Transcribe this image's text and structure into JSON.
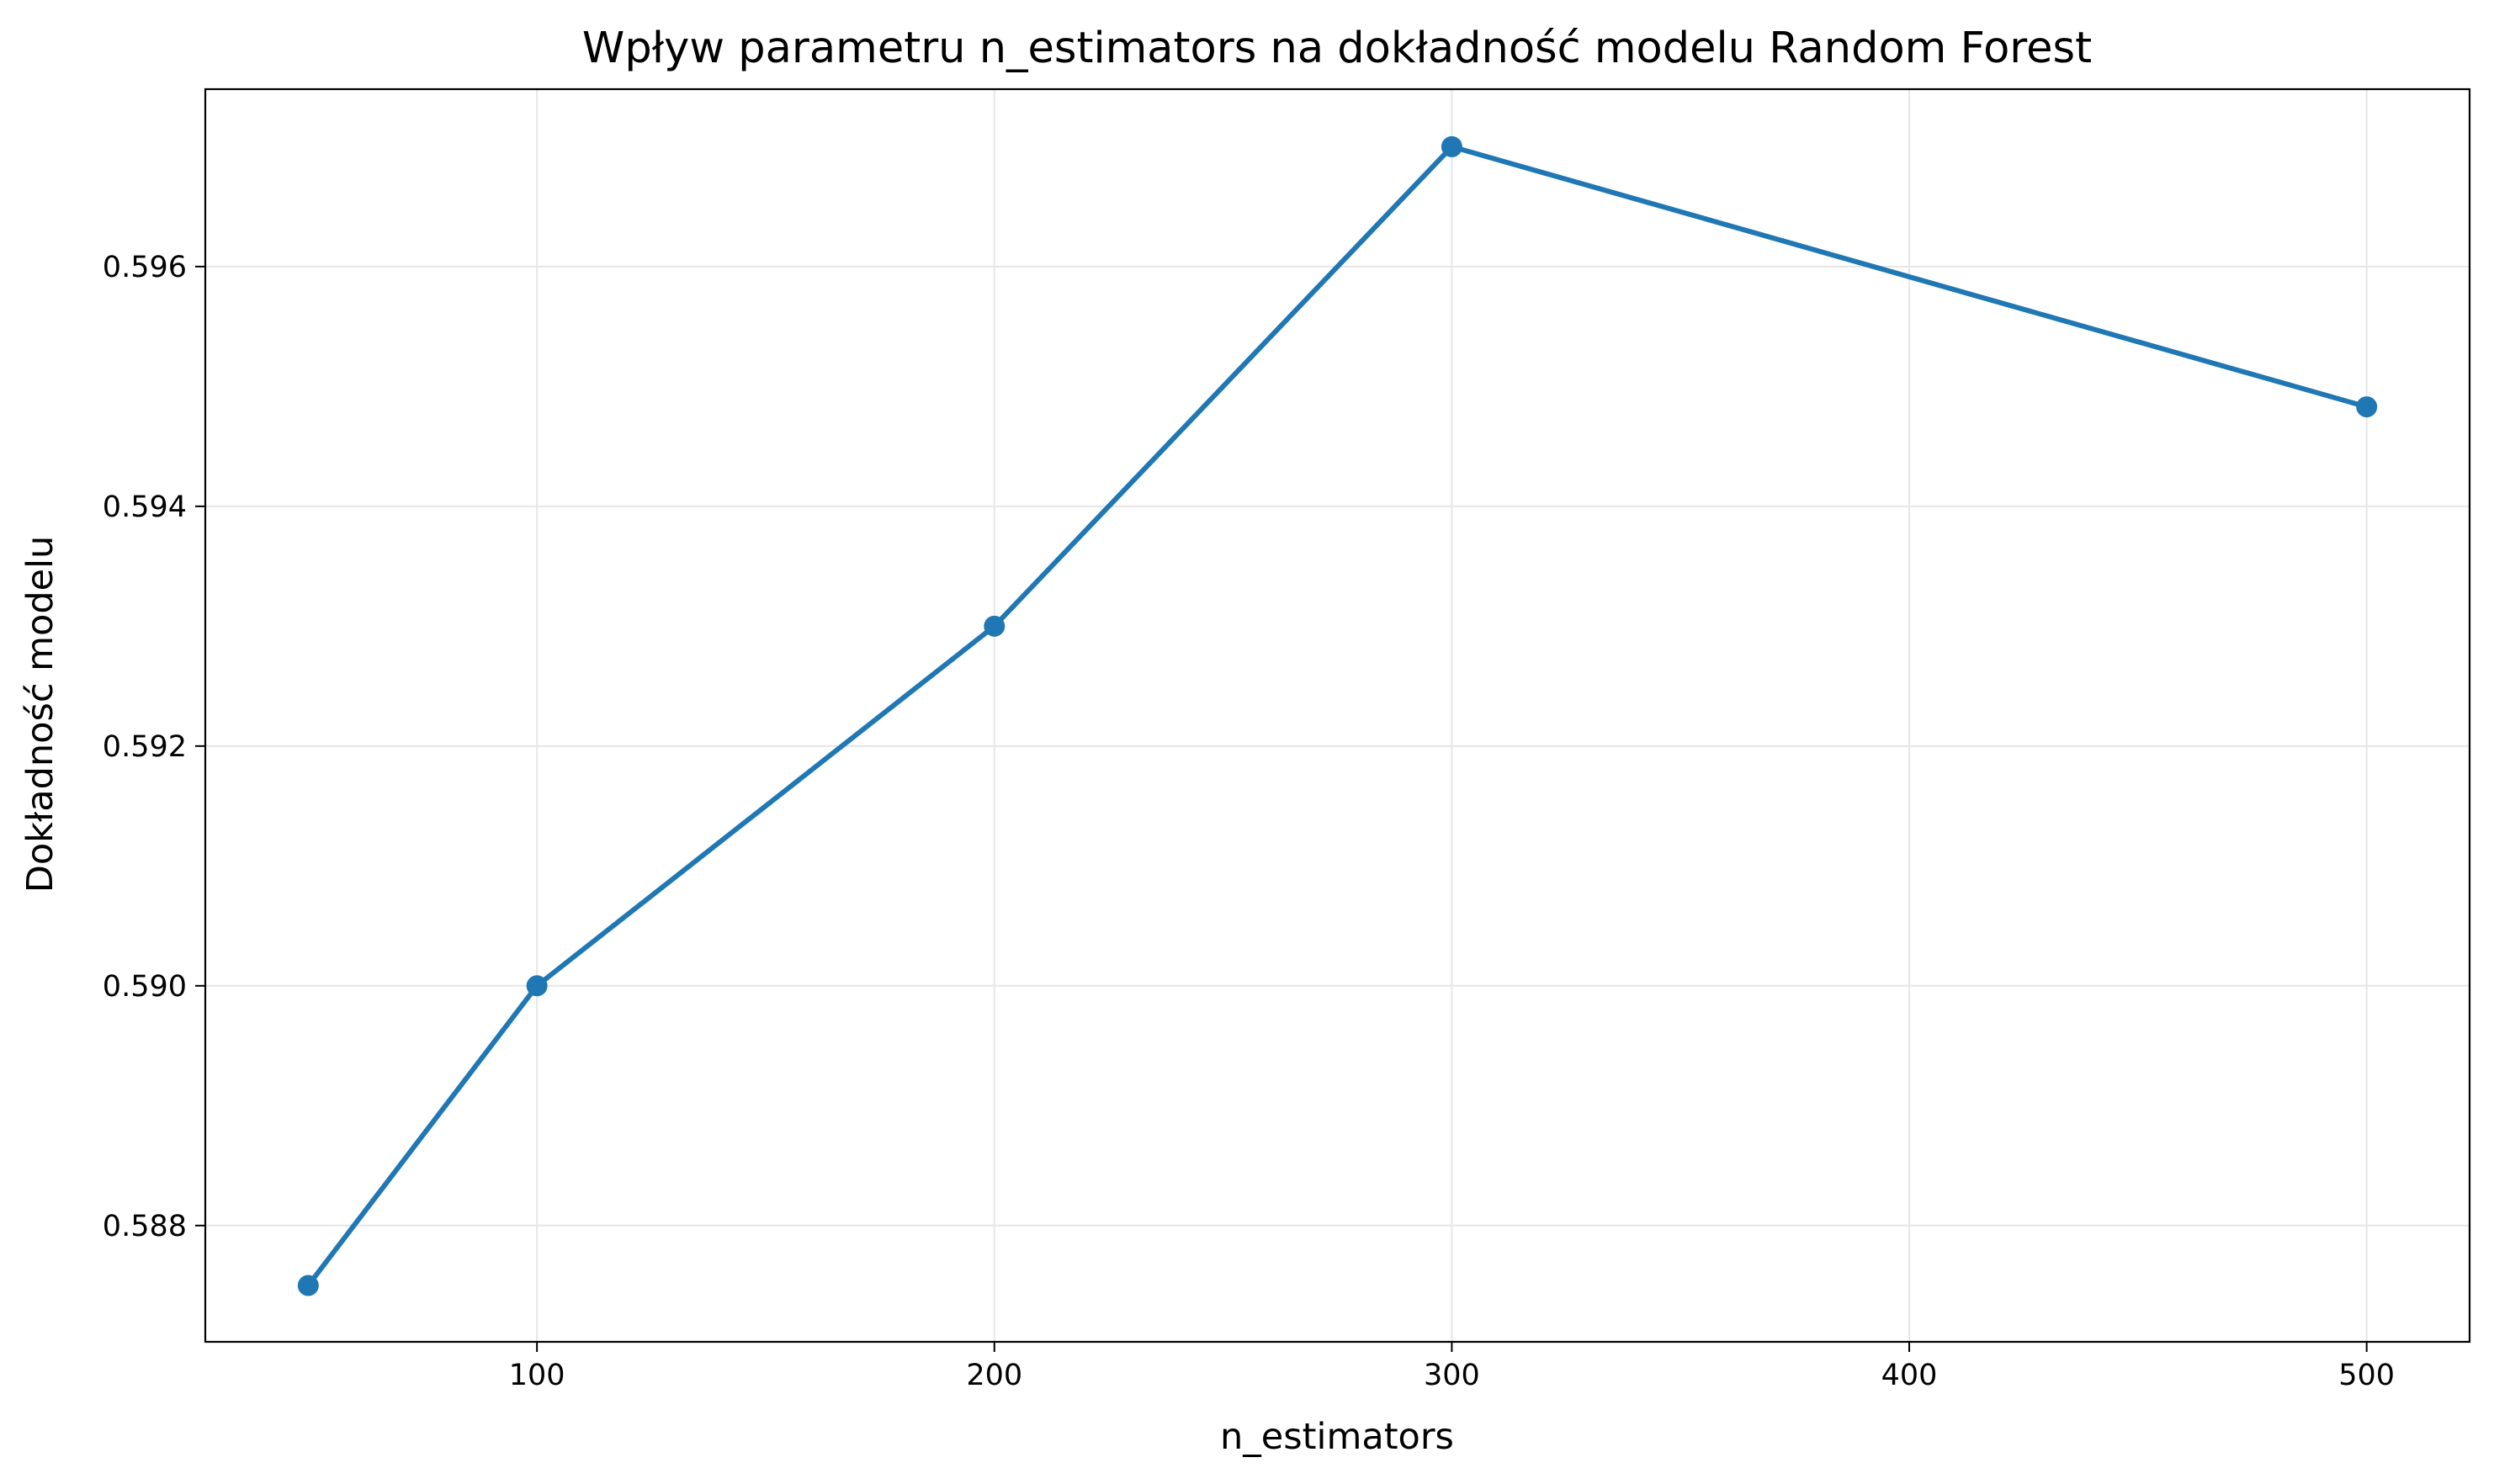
{
  "chart_data": {
    "type": "line",
    "title": "Wpływ parametru n_estimators na dokładność modelu Random Forest",
    "xlabel": "n_estimators",
    "ylabel": "Dokładność modelu",
    "x": [
      50,
      100,
      200,
      300,
      500
    ],
    "series": [
      {
        "values": [
          0.5875,
          0.59,
          0.593,
          0.597,
          0.59483
        ]
      }
    ],
    "xlim": [
      27.5,
      522.5
    ],
    "ylim": [
      0.58703,
      0.59748
    ],
    "x_ticks": [
      100,
      200,
      300,
      400,
      500
    ],
    "x_tick_labels": [
      "100",
      "200",
      "300",
      "400",
      "500"
    ],
    "y_ticks": [
      0.588,
      0.59,
      0.592,
      0.594,
      0.596
    ],
    "y_tick_labels": [
      "0.588",
      "0.590",
      "0.592",
      "0.594",
      "0.596"
    ],
    "grid": true,
    "markers": true,
    "colors": {
      "line": "#1f77b4",
      "grid": "#e6e6e6",
      "axes": "#000000"
    }
  }
}
